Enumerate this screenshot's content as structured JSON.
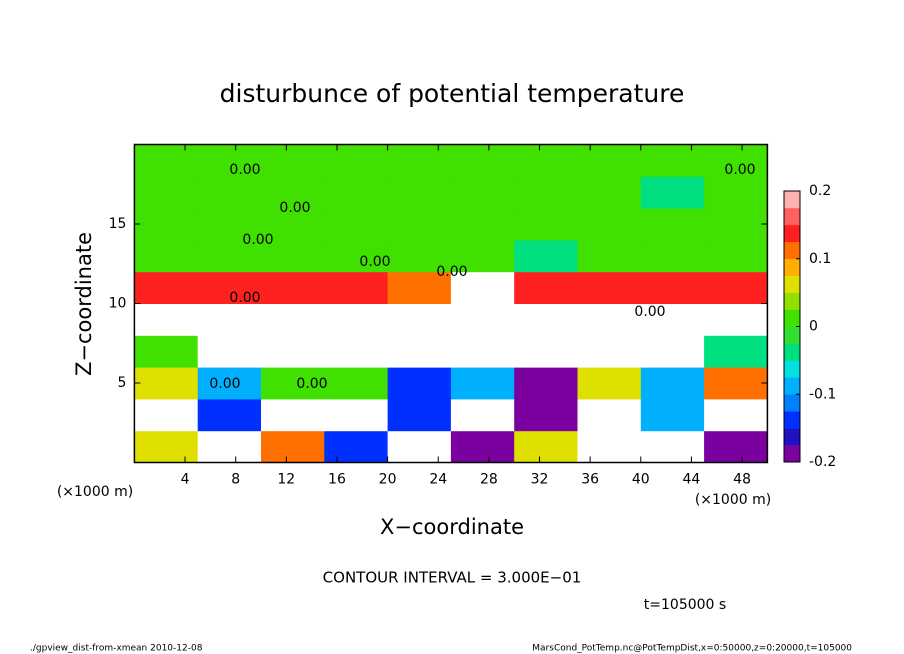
{
  "chart_data": {
    "type": "heatmap",
    "title": "disturbunce of potential temperature",
    "x_label": "X−coordinate",
    "y_label": "Z−coordinate",
    "x_unit": "(×1000 m)",
    "y_unit": "(×1000 m)",
    "contour_interval": "CONTOUR INTERVAL = 3.000E−01",
    "time_label": "t=105000 s",
    "footer_left": "./gpview_dist-from-xmean  2010-12-08",
    "footer_right": "MarsCond_PotTemp.nc@PotTempDist,x=0:50000,z=0:20000,t=105000",
    "annotations": [
      "0.00",
      "0.00",
      "0.00",
      "0.00",
      "0.00",
      "0.00",
      "0.00",
      "0.00",
      "0.00",
      "0.00"
    ],
    "xlim": [
      0,
      50
    ],
    "ylim": [
      0,
      20
    ],
    "xticks": [
      4,
      8,
      12,
      16,
      20,
      24,
      28,
      32,
      36,
      40,
      44,
      48
    ],
    "yticks": [
      5,
      10,
      15
    ],
    "xbins": [
      0,
      5,
      10,
      15,
      20,
      25,
      30,
      35,
      40,
      45,
      50
    ],
    "ybins": [
      0,
      2,
      4,
      6,
      8,
      10,
      12,
      14,
      16,
      18,
      20
    ],
    "z": [
      [
        0.05,
        -0.3,
        0.1,
        -0.15,
        0.3,
        -0.2,
        0.05,
        -0.3,
        0.3,
        -0.2
      ],
      [
        0.3,
        -0.15,
        -0.3,
        0.3,
        -0.15,
        0.3,
        -0.2,
        0.3,
        -0.1,
        0.3
      ],
      [
        0.05,
        -0.1,
        0,
        0.02,
        -0.15,
        -0.1,
        -0.2,
        0.05,
        -0.1,
        0.1
      ],
      [
        0,
        0.3,
        0.3,
        0.3,
        0.3,
        0.3,
        0.3,
        0.3,
        0.3,
        -0.05
      ],
      [
        0.3,
        0.3,
        0.3,
        0.3,
        0.3,
        0.3,
        0.3,
        0.3,
        0.3,
        0.3
      ],
      [
        0.15,
        0.15,
        0.15,
        0.15,
        0.12,
        0.3,
        0.15,
        0.15,
        0.15,
        0.15
      ],
      [
        0.02,
        0.02,
        0,
        0,
        0,
        0.02,
        -0.05,
        0,
        0.02,
        0
      ],
      [
        0,
        0,
        0,
        0,
        0,
        0,
        0,
        0,
        0,
        0
      ],
      [
        0,
        0,
        0,
        0,
        0,
        0,
        0,
        0,
        -0.05,
        0
      ],
      [
        0,
        0,
        0,
        0,
        0,
        0,
        0,
        0,
        0,
        0
      ]
    ],
    "zlim": [
      -0.2,
      0.2
    ],
    "zticks": [
      -0.2,
      -0.1,
      0,
      0.1,
      0.2
    ],
    "out_of_range_color": "#ffffff",
    "colors": [
      "#7a00a0",
      "#2010c0",
      "#0030ff",
      "#0080ff",
      "#00b0ff",
      "#00e0e0",
      "#00e080",
      "#30e030",
      "#40e000",
      "#90e000",
      "#e0e000",
      "#ffb000",
      "#ff7000",
      "#ff2020",
      "#ff6060",
      "#ffb0b0"
    ]
  }
}
